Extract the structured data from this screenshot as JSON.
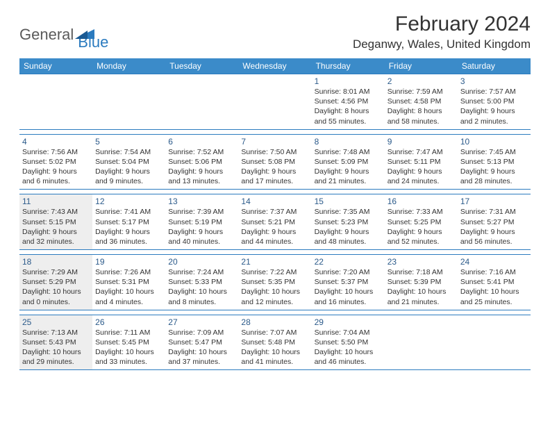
{
  "logo": {
    "text_general": "General",
    "text_blue": "Blue",
    "triangle_color": "#2b7bbf"
  },
  "title": {
    "month_year": "February 2024",
    "location": "Deganwy, Wales, United Kingdom"
  },
  "colors": {
    "header_bg": "#3b8bc9",
    "border": "#2b7bbf",
    "shade": "#eeeeee",
    "daynum": "#2b5a8a"
  },
  "weekdays": [
    "Sunday",
    "Monday",
    "Tuesday",
    "Wednesday",
    "Thursday",
    "Friday",
    "Saturday"
  ],
  "weeks": [
    [
      {
        "num": "",
        "sunrise": "",
        "sunset": "",
        "daylight": "",
        "shaded": false
      },
      {
        "num": "",
        "sunrise": "",
        "sunset": "",
        "daylight": "",
        "shaded": false
      },
      {
        "num": "",
        "sunrise": "",
        "sunset": "",
        "daylight": "",
        "shaded": false
      },
      {
        "num": "",
        "sunrise": "",
        "sunset": "",
        "daylight": "",
        "shaded": false
      },
      {
        "num": "1",
        "sunrise": "Sunrise: 8:01 AM",
        "sunset": "Sunset: 4:56 PM",
        "daylight": "Daylight: 8 hours and 55 minutes.",
        "shaded": false
      },
      {
        "num": "2",
        "sunrise": "Sunrise: 7:59 AM",
        "sunset": "Sunset: 4:58 PM",
        "daylight": "Daylight: 8 hours and 58 minutes.",
        "shaded": false
      },
      {
        "num": "3",
        "sunrise": "Sunrise: 7:57 AM",
        "sunset": "Sunset: 5:00 PM",
        "daylight": "Daylight: 9 hours and 2 minutes.",
        "shaded": false
      }
    ],
    [
      {
        "num": "4",
        "sunrise": "Sunrise: 7:56 AM",
        "sunset": "Sunset: 5:02 PM",
        "daylight": "Daylight: 9 hours and 6 minutes.",
        "shaded": false
      },
      {
        "num": "5",
        "sunrise": "Sunrise: 7:54 AM",
        "sunset": "Sunset: 5:04 PM",
        "daylight": "Daylight: 9 hours and 9 minutes.",
        "shaded": false
      },
      {
        "num": "6",
        "sunrise": "Sunrise: 7:52 AM",
        "sunset": "Sunset: 5:06 PM",
        "daylight": "Daylight: 9 hours and 13 minutes.",
        "shaded": false
      },
      {
        "num": "7",
        "sunrise": "Sunrise: 7:50 AM",
        "sunset": "Sunset: 5:08 PM",
        "daylight": "Daylight: 9 hours and 17 minutes.",
        "shaded": false
      },
      {
        "num": "8",
        "sunrise": "Sunrise: 7:48 AM",
        "sunset": "Sunset: 5:09 PM",
        "daylight": "Daylight: 9 hours and 21 minutes.",
        "shaded": false
      },
      {
        "num": "9",
        "sunrise": "Sunrise: 7:47 AM",
        "sunset": "Sunset: 5:11 PM",
        "daylight": "Daylight: 9 hours and 24 minutes.",
        "shaded": false
      },
      {
        "num": "10",
        "sunrise": "Sunrise: 7:45 AM",
        "sunset": "Sunset: 5:13 PM",
        "daylight": "Daylight: 9 hours and 28 minutes.",
        "shaded": false
      }
    ],
    [
      {
        "num": "11",
        "sunrise": "Sunrise: 7:43 AM",
        "sunset": "Sunset: 5:15 PM",
        "daylight": "Daylight: 9 hours and 32 minutes.",
        "shaded": true
      },
      {
        "num": "12",
        "sunrise": "Sunrise: 7:41 AM",
        "sunset": "Sunset: 5:17 PM",
        "daylight": "Daylight: 9 hours and 36 minutes.",
        "shaded": false
      },
      {
        "num": "13",
        "sunrise": "Sunrise: 7:39 AM",
        "sunset": "Sunset: 5:19 PM",
        "daylight": "Daylight: 9 hours and 40 minutes.",
        "shaded": false
      },
      {
        "num": "14",
        "sunrise": "Sunrise: 7:37 AM",
        "sunset": "Sunset: 5:21 PM",
        "daylight": "Daylight: 9 hours and 44 minutes.",
        "shaded": false
      },
      {
        "num": "15",
        "sunrise": "Sunrise: 7:35 AM",
        "sunset": "Sunset: 5:23 PM",
        "daylight": "Daylight: 9 hours and 48 minutes.",
        "shaded": false
      },
      {
        "num": "16",
        "sunrise": "Sunrise: 7:33 AM",
        "sunset": "Sunset: 5:25 PM",
        "daylight": "Daylight: 9 hours and 52 minutes.",
        "shaded": false
      },
      {
        "num": "17",
        "sunrise": "Sunrise: 7:31 AM",
        "sunset": "Sunset: 5:27 PM",
        "daylight": "Daylight: 9 hours and 56 minutes.",
        "shaded": false
      }
    ],
    [
      {
        "num": "18",
        "sunrise": "Sunrise: 7:29 AM",
        "sunset": "Sunset: 5:29 PM",
        "daylight": "Daylight: 10 hours and 0 minutes.",
        "shaded": true
      },
      {
        "num": "19",
        "sunrise": "Sunrise: 7:26 AM",
        "sunset": "Sunset: 5:31 PM",
        "daylight": "Daylight: 10 hours and 4 minutes.",
        "shaded": false
      },
      {
        "num": "20",
        "sunrise": "Sunrise: 7:24 AM",
        "sunset": "Sunset: 5:33 PM",
        "daylight": "Daylight: 10 hours and 8 minutes.",
        "shaded": false
      },
      {
        "num": "21",
        "sunrise": "Sunrise: 7:22 AM",
        "sunset": "Sunset: 5:35 PM",
        "daylight": "Daylight: 10 hours and 12 minutes.",
        "shaded": false
      },
      {
        "num": "22",
        "sunrise": "Sunrise: 7:20 AM",
        "sunset": "Sunset: 5:37 PM",
        "daylight": "Daylight: 10 hours and 16 minutes.",
        "shaded": false
      },
      {
        "num": "23",
        "sunrise": "Sunrise: 7:18 AM",
        "sunset": "Sunset: 5:39 PM",
        "daylight": "Daylight: 10 hours and 21 minutes.",
        "shaded": false
      },
      {
        "num": "24",
        "sunrise": "Sunrise: 7:16 AM",
        "sunset": "Sunset: 5:41 PM",
        "daylight": "Daylight: 10 hours and 25 minutes.",
        "shaded": false
      }
    ],
    [
      {
        "num": "25",
        "sunrise": "Sunrise: 7:13 AM",
        "sunset": "Sunset: 5:43 PM",
        "daylight": "Daylight: 10 hours and 29 minutes.",
        "shaded": true
      },
      {
        "num": "26",
        "sunrise": "Sunrise: 7:11 AM",
        "sunset": "Sunset: 5:45 PM",
        "daylight": "Daylight: 10 hours and 33 minutes.",
        "shaded": false
      },
      {
        "num": "27",
        "sunrise": "Sunrise: 7:09 AM",
        "sunset": "Sunset: 5:47 PM",
        "daylight": "Daylight: 10 hours and 37 minutes.",
        "shaded": false
      },
      {
        "num": "28",
        "sunrise": "Sunrise: 7:07 AM",
        "sunset": "Sunset: 5:48 PM",
        "daylight": "Daylight: 10 hours and 41 minutes.",
        "shaded": false
      },
      {
        "num": "29",
        "sunrise": "Sunrise: 7:04 AM",
        "sunset": "Sunset: 5:50 PM",
        "daylight": "Daylight: 10 hours and 46 minutes.",
        "shaded": false
      },
      {
        "num": "",
        "sunrise": "",
        "sunset": "",
        "daylight": "",
        "shaded": false
      },
      {
        "num": "",
        "sunrise": "",
        "sunset": "",
        "daylight": "",
        "shaded": false
      }
    ]
  ]
}
